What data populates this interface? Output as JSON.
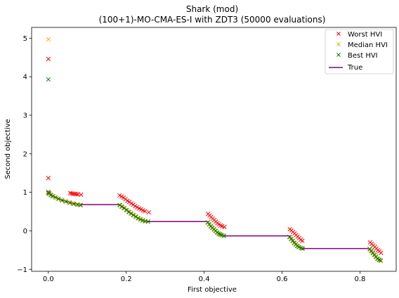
{
  "chart_data": {
    "type": "scatter",
    "title": "Shark (mod)",
    "subtitle": "(100+1)-MO-CMA-ES-I with ZDT3 (50000 evaluations)",
    "xlabel": "First objective",
    "ylabel": "Second objective",
    "xlim": [
      -0.043,
      0.893
    ],
    "ylim": [
      -1.05,
      5.28
    ],
    "xticks": [
      0.0,
      0.2,
      0.4,
      0.6,
      0.8
    ],
    "xtick_labels": [
      "0.0",
      "0.2",
      "0.4",
      "0.6",
      "0.8"
    ],
    "yticks": [
      -1,
      0,
      1,
      2,
      3,
      4,
      5
    ],
    "ytick_labels": [
      "−1",
      "0",
      "1",
      "2",
      "3",
      "4",
      "5"
    ],
    "grid": false,
    "legend_position": "top-right",
    "legend": [
      "Worst HVI",
      "Median HVI",
      "Best HVI",
      "True"
    ],
    "colors": {
      "worst": "#ff0000",
      "median": "#ffa500",
      "best": "#008000",
      "true": "#800080",
      "axes": "#000000"
    },
    "series": [
      {
        "name": "Worst HVI",
        "marker": "x",
        "color": "#ff0000",
        "points": [
          [
            0.0,
            4.46
          ],
          [
            0.0,
            1.37
          ],
          [
            0.0,
            0.98
          ],
          [
            0.056,
            0.98
          ],
          [
            0.06,
            0.97
          ],
          [
            0.064,
            0.96
          ],
          [
            0.068,
            0.96
          ],
          [
            0.072,
            0.95
          ],
          [
            0.076,
            0.95
          ],
          [
            0.084,
            0.94
          ],
          [
            0.183,
            0.92
          ],
          [
            0.188,
            0.89
          ],
          [
            0.193,
            0.86
          ],
          [
            0.198,
            0.82
          ],
          [
            0.203,
            0.78
          ],
          [
            0.208,
            0.75
          ],
          [
            0.213,
            0.71
          ],
          [
            0.218,
            0.68
          ],
          [
            0.223,
            0.64
          ],
          [
            0.228,
            0.61
          ],
          [
            0.233,
            0.58
          ],
          [
            0.238,
            0.56
          ],
          [
            0.243,
            0.53
          ],
          [
            0.248,
            0.51
          ],
          [
            0.258,
            0.48
          ],
          [
            0.41,
            0.44
          ],
          [
            0.414,
            0.4
          ],
          [
            0.418,
            0.36
          ],
          [
            0.422,
            0.32
          ],
          [
            0.426,
            0.28
          ],
          [
            0.43,
            0.24
          ],
          [
            0.434,
            0.2
          ],
          [
            0.438,
            0.17
          ],
          [
            0.442,
            0.14
          ],
          [
            0.446,
            0.12
          ],
          [
            0.452,
            0.1
          ],
          [
            0.62,
            0.04
          ],
          [
            0.624,
            0.01
          ],
          [
            0.628,
            -0.03
          ],
          [
            0.632,
            -0.07
          ],
          [
            0.636,
            -0.11
          ],
          [
            0.64,
            -0.15
          ],
          [
            0.644,
            -0.19
          ],
          [
            0.648,
            -0.23
          ],
          [
            0.652,
            -0.26
          ],
          [
            0.826,
            -0.3
          ],
          [
            0.83,
            -0.34
          ],
          [
            0.834,
            -0.38
          ],
          [
            0.838,
            -0.42
          ],
          [
            0.842,
            -0.46
          ],
          [
            0.846,
            -0.5
          ],
          [
            0.85,
            -0.53
          ],
          [
            0.854,
            -0.57
          ]
        ]
      },
      {
        "name": "Median HVI",
        "marker": "x",
        "color": "#ffa500",
        "points": [
          [
            0.0,
            4.97
          ],
          [
            0.0,
            1.0
          ],
          [
            0.003,
            0.96
          ],
          [
            0.008,
            0.92
          ],
          [
            0.014,
            0.89
          ],
          [
            0.022,
            0.85
          ],
          [
            0.032,
            0.81
          ],
          [
            0.042,
            0.77
          ],
          [
            0.052,
            0.74
          ],
          [
            0.062,
            0.71
          ],
          [
            0.072,
            0.69
          ],
          [
            0.08,
            0.67
          ],
          [
            0.184,
            0.66
          ],
          [
            0.19,
            0.62
          ],
          [
            0.196,
            0.58
          ],
          [
            0.202,
            0.53
          ],
          [
            0.208,
            0.48
          ],
          [
            0.214,
            0.44
          ],
          [
            0.22,
            0.4
          ],
          [
            0.226,
            0.36
          ],
          [
            0.232,
            0.32
          ],
          [
            0.238,
            0.29
          ],
          [
            0.244,
            0.27
          ],
          [
            0.25,
            0.25
          ],
          [
            0.41,
            0.21
          ],
          [
            0.414,
            0.16
          ],
          [
            0.418,
            0.11
          ],
          [
            0.422,
            0.07
          ],
          [
            0.426,
            0.03
          ],
          [
            0.43,
            -0.01
          ],
          [
            0.434,
            -0.05
          ],
          [
            0.438,
            -0.08
          ],
          [
            0.442,
            -0.1
          ],
          [
            0.448,
            -0.12
          ],
          [
            0.62,
            -0.17
          ],
          [
            0.624,
            -0.22
          ],
          [
            0.628,
            -0.27
          ],
          [
            0.632,
            -0.32
          ],
          [
            0.636,
            -0.36
          ],
          [
            0.64,
            -0.4
          ],
          [
            0.646,
            -0.43
          ],
          [
            0.652,
            -0.46
          ],
          [
            0.826,
            -0.49
          ],
          [
            0.83,
            -0.54
          ],
          [
            0.834,
            -0.59
          ],
          [
            0.838,
            -0.64
          ],
          [
            0.842,
            -0.69
          ],
          [
            0.846,
            -0.73
          ],
          [
            0.85,
            -0.76
          ],
          [
            0.854,
            -0.78
          ]
        ]
      },
      {
        "name": "Best HVI",
        "marker": "x",
        "color": "#008000",
        "points": [
          [
            0.0,
            3.93
          ],
          [
            0.0,
            1.01
          ],
          [
            0.002,
            0.97
          ],
          [
            0.006,
            0.93
          ],
          [
            0.011,
            0.9
          ],
          [
            0.018,
            0.87
          ],
          [
            0.026,
            0.83
          ],
          [
            0.035,
            0.79
          ],
          [
            0.045,
            0.76
          ],
          [
            0.055,
            0.73
          ],
          [
            0.065,
            0.7
          ],
          [
            0.075,
            0.68
          ],
          [
            0.083,
            0.67
          ],
          [
            0.183,
            0.67
          ],
          [
            0.188,
            0.63
          ],
          [
            0.194,
            0.59
          ],
          [
            0.2,
            0.54
          ],
          [
            0.206,
            0.49
          ],
          [
            0.212,
            0.45
          ],
          [
            0.218,
            0.41
          ],
          [
            0.224,
            0.37
          ],
          [
            0.23,
            0.33
          ],
          [
            0.236,
            0.3
          ],
          [
            0.242,
            0.27
          ],
          [
            0.248,
            0.25
          ],
          [
            0.256,
            0.24
          ],
          [
            0.409,
            0.22
          ],
          [
            0.413,
            0.17
          ],
          [
            0.417,
            0.12
          ],
          [
            0.421,
            0.08
          ],
          [
            0.425,
            0.04
          ],
          [
            0.429,
            0.0
          ],
          [
            0.433,
            -0.04
          ],
          [
            0.437,
            -0.07
          ],
          [
            0.441,
            -0.09
          ],
          [
            0.445,
            -0.11
          ],
          [
            0.451,
            -0.13
          ],
          [
            0.619,
            -0.16
          ],
          [
            0.623,
            -0.21
          ],
          [
            0.627,
            -0.26
          ],
          [
            0.631,
            -0.31
          ],
          [
            0.635,
            -0.35
          ],
          [
            0.639,
            -0.39
          ],
          [
            0.643,
            -0.42
          ],
          [
            0.649,
            -0.45
          ],
          [
            0.653,
            -0.46
          ],
          [
            0.825,
            -0.47
          ],
          [
            0.829,
            -0.52
          ],
          [
            0.833,
            -0.57
          ],
          [
            0.837,
            -0.62
          ],
          [
            0.841,
            -0.67
          ],
          [
            0.845,
            -0.72
          ],
          [
            0.849,
            -0.75
          ],
          [
            0.853,
            -0.77
          ]
        ]
      },
      {
        "name": "True",
        "marker": "line",
        "color": "#800080",
        "points": [
          [
            0.0,
            1.0
          ],
          [
            0.005,
            0.96
          ],
          [
            0.012,
            0.91
          ],
          [
            0.02,
            0.87
          ],
          [
            0.03,
            0.82
          ],
          [
            0.04,
            0.78
          ],
          [
            0.05,
            0.75
          ],
          [
            0.06,
            0.72
          ],
          [
            0.07,
            0.7
          ],
          [
            0.083,
            0.68
          ],
          [
            0.183,
            0.68
          ],
          [
            0.189,
            0.64
          ],
          [
            0.195,
            0.6
          ],
          [
            0.201,
            0.55
          ],
          [
            0.207,
            0.5
          ],
          [
            0.213,
            0.45
          ],
          [
            0.219,
            0.41
          ],
          [
            0.225,
            0.37
          ],
          [
            0.231,
            0.33
          ],
          [
            0.237,
            0.3
          ],
          [
            0.243,
            0.27
          ],
          [
            0.25,
            0.25
          ],
          [
            0.258,
            0.24
          ],
          [
            0.409,
            0.24
          ],
          [
            0.413,
            0.18
          ],
          [
            0.417,
            0.13
          ],
          [
            0.421,
            0.08
          ],
          [
            0.425,
            0.04
          ],
          [
            0.429,
            0.0
          ],
          [
            0.433,
            -0.04
          ],
          [
            0.437,
            -0.07
          ],
          [
            0.441,
            -0.09
          ],
          [
            0.446,
            -0.11
          ],
          [
            0.452,
            -0.13
          ],
          [
            0.619,
            -0.13
          ],
          [
            0.623,
            -0.19
          ],
          [
            0.627,
            -0.24
          ],
          [
            0.631,
            -0.29
          ],
          [
            0.635,
            -0.34
          ],
          [
            0.639,
            -0.38
          ],
          [
            0.643,
            -0.41
          ],
          [
            0.648,
            -0.44
          ],
          [
            0.653,
            -0.46
          ],
          [
            0.823,
            -0.46
          ],
          [
            0.827,
            -0.51
          ],
          [
            0.831,
            -0.56
          ],
          [
            0.835,
            -0.61
          ],
          [
            0.839,
            -0.66
          ],
          [
            0.843,
            -0.7
          ],
          [
            0.847,
            -0.74
          ],
          [
            0.851,
            -0.76
          ],
          [
            0.854,
            -0.77
          ]
        ]
      }
    ]
  }
}
